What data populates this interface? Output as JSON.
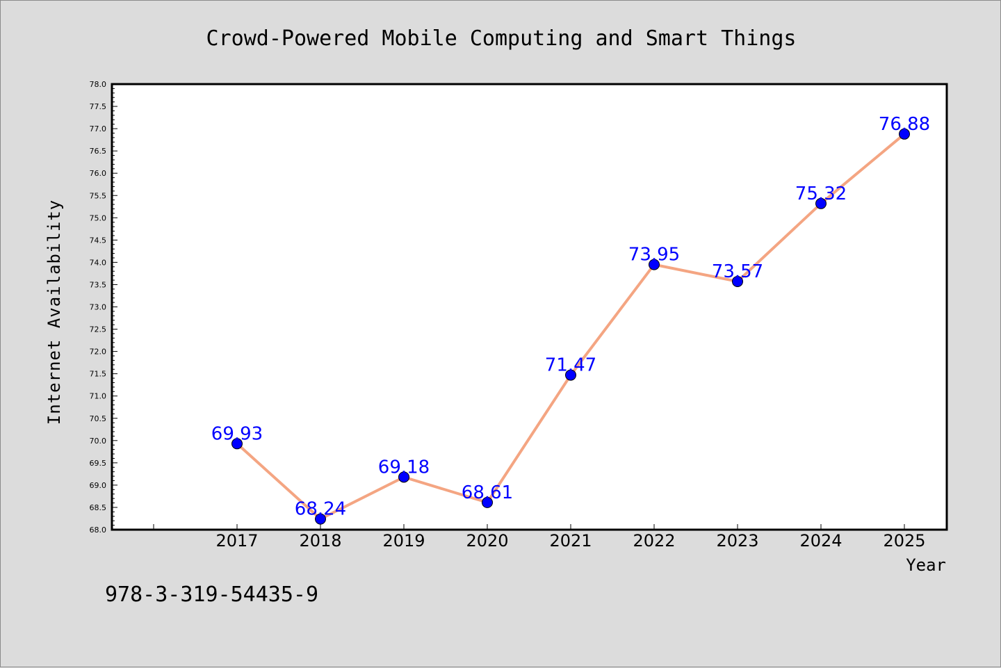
{
  "chart_data": {
    "type": "line",
    "title": "Crowd-Powered Mobile Computing and Smart Things",
    "xlabel": "Year",
    "ylabel": "Internet Availability",
    "categories": [
      "2017",
      "2018",
      "2019",
      "2020",
      "2021",
      "2022",
      "2023",
      "2024",
      "2025"
    ],
    "values": [
      69.93,
      68.24,
      69.18,
      68.61,
      71.47,
      73.95,
      73.57,
      75.32,
      76.88
    ],
    "data_labels": [
      "69.93",
      "68.24",
      "69.18",
      "68.61",
      "71.47",
      "73.95",
      "73.57",
      "75.32",
      "76.88"
    ],
    "ylim": [
      68.0,
      78.0
    ],
    "yticks": [
      "68.0",
      "68.5",
      "69.0",
      "69.5",
      "70.0",
      "70.5",
      "71.0",
      "71.5",
      "72.0",
      "72.5",
      "73.0",
      "73.5",
      "74.0",
      "74.5",
      "75.0",
      "75.5",
      "76.0",
      "76.5",
      "77.0",
      "77.5",
      "78.0"
    ],
    "grid": false,
    "line_color": "#f4a582",
    "marker_color": "#0000ff",
    "label_color": "#0000ff"
  },
  "footer_text": "978-3-319-54435-9"
}
